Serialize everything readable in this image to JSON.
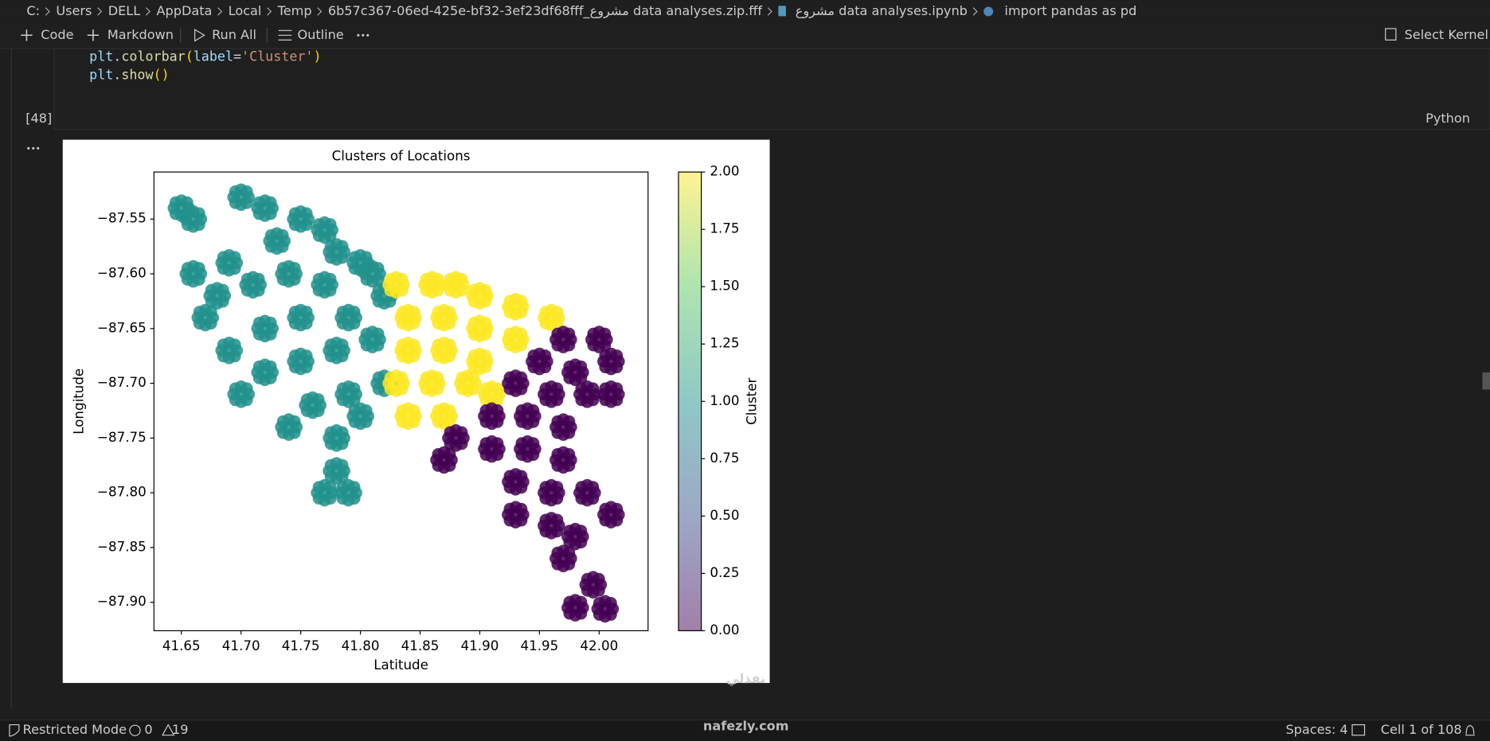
{
  "breadcrumb": [
    "C:",
    "Users",
    "DELL",
    "AppData",
    "Local",
    "Temp",
    "6b57c367-06ed-425e-bf32-3ef23df68fff_مشروع data analyses.zip.fff",
    "مشروع data analyses.ipynb",
    "import pandas as pd"
  ],
  "toolbar": {
    "code": "Code",
    "markdown": "Markdown",
    "run_all": "Run All",
    "outline": "Outline",
    "kernel": "Select Kernel"
  },
  "code": {
    "lines": [
      [
        "plt",
        ".",
        "colorbar",
        "(",
        "label",
        "=",
        "'Cluster'",
        ")"
      ],
      [
        "plt",
        ".",
        "show",
        "()"
      ]
    ]
  },
  "cell": {
    "execution_count": "[48]",
    "language": "Python"
  },
  "chart_data": {
    "type": "scatter",
    "title": "Clusters of Locations",
    "xlabel": "Latitude",
    "ylabel": "Longitude",
    "xlim": [
      41.627,
      42.041
    ],
    "ylim": [
      -87.926,
      -87.507
    ],
    "xticks": [
      41.65,
      {
        "value": 41.7,
        "label": "41.70"
      },
      41.75,
      {
        "value": 41.8,
        "label": "41.80"
      },
      41.85,
      {
        "value": 41.9,
        "label": "41.90"
      },
      41.95,
      {
        "value": 42,
        "label": "42.00"
      }
    ],
    "yticks": [
      {
        "value": -87.55,
        "label": "−87.55"
      },
      {
        "value": -87.6,
        "label": "−87.60"
      },
      {
        "value": -87.65,
        "label": "−87.65"
      },
      {
        "value": -87.7,
        "label": "−87.70"
      },
      {
        "value": -87.75,
        "label": "−87.75"
      },
      {
        "value": -87.8,
        "label": "−87.80"
      },
      {
        "value": -87.85,
        "label": "−87.85"
      },
      {
        "value": -87.9,
        "label": "−87.90"
      }
    ],
    "grid": false,
    "series": [
      {
        "color": "#21918c",
        "x": [
          41.65,
          41.66,
          41.7,
          41.72,
          41.75,
          41.77,
          41.78,
          41.73,
          41.69,
          41.66,
          41.68,
          41.71,
          41.74,
          41.77,
          41.8,
          41.82,
          41.79,
          41.75,
          41.72,
          41.69,
          41.72,
          41.7,
          41.75,
          41.78,
          41.81,
          41.82,
          41.79,
          41.76,
          41.74,
          41.78,
          41.8,
          41.78,
          41.77,
          41.79,
          41.67,
          41.81
        ],
        "y": [
          -87.54,
          -87.55,
          -87.53,
          -87.54,
          -87.55,
          -87.56,
          -87.58,
          -87.57,
          -87.59,
          -87.6,
          -87.62,
          -87.61,
          -87.6,
          -87.61,
          -87.59,
          -87.62,
          -87.64,
          -87.64,
          -87.65,
          -87.67,
          -87.69,
          -87.71,
          -87.68,
          -87.67,
          -87.66,
          -87.7,
          -87.71,
          -87.72,
          -87.74,
          -87.75,
          -87.73,
          -87.78,
          -87.8,
          -87.8,
          -87.64,
          -87.6
        ]
      },
      {
        "color": "#fde725",
        "x": [
          41.83,
          41.86,
          41.88,
          41.9,
          41.93,
          41.96,
          41.84,
          41.87,
          41.9,
          41.93,
          41.84,
          41.87,
          41.9,
          41.83,
          41.86,
          41.89,
          41.84,
          41.87,
          41.91
        ],
        "y": [
          -87.61,
          -87.61,
          -87.61,
          -87.62,
          -87.63,
          -87.64,
          -87.64,
          -87.64,
          -87.65,
          -87.66,
          -87.67,
          -87.67,
          -87.68,
          -87.7,
          -87.7,
          -87.7,
          -87.73,
          -87.73,
          -87.71
        ]
      },
      {
        "color": "#440154",
        "x": [
          41.97,
          42.0,
          42.01,
          41.95,
          41.98,
          41.93,
          41.96,
          41.99,
          42.01,
          41.91,
          41.94,
          41.97,
          41.88,
          41.91,
          41.94,
          41.97,
          41.87,
          41.93,
          41.96,
          41.99,
          41.93,
          41.96,
          42.01,
          41.98,
          41.97,
          41.98,
          42.005,
          41.995
        ],
        "y": [
          -87.66,
          -87.66,
          -87.68,
          -87.68,
          -87.69,
          -87.7,
          -87.71,
          -87.71,
          -87.71,
          -87.73,
          -87.73,
          -87.74,
          -87.75,
          -87.76,
          -87.76,
          -87.77,
          -87.77,
          -87.79,
          -87.8,
          -87.8,
          -87.82,
          -87.83,
          -87.82,
          -87.84,
          -87.86,
          -87.905,
          -87.906,
          -87.884
        ]
      }
    ],
    "colorbar": {
      "label": "Cluster",
      "lim": [
        0,
        2
      ],
      "colors": [
        "#440154",
        "#3b528b",
        "#21918c",
        "#5ec962",
        "#fde725"
      ],
      "ticks": [
        {
          "value": 0,
          "label": "0.00"
        },
        0.25,
        {
          "value": 0.5,
          "label": "0.50"
        },
        0.75,
        {
          "value": 1,
          "label": "1.00"
        },
        1.25,
        {
          "value": 1.5,
          "label": "1.50"
        },
        1.75,
        {
          "value": 2,
          "label": "2.00"
        }
      ]
    }
  },
  "status": {
    "mode": "Restricted Mode",
    "errors": "0",
    "warnings": "19",
    "spaces": "Spaces: 4",
    "cell": "Cell 1 of 108"
  },
  "watermark": {
    "arabic": "نفذلي",
    "site": "nafezly.com"
  }
}
